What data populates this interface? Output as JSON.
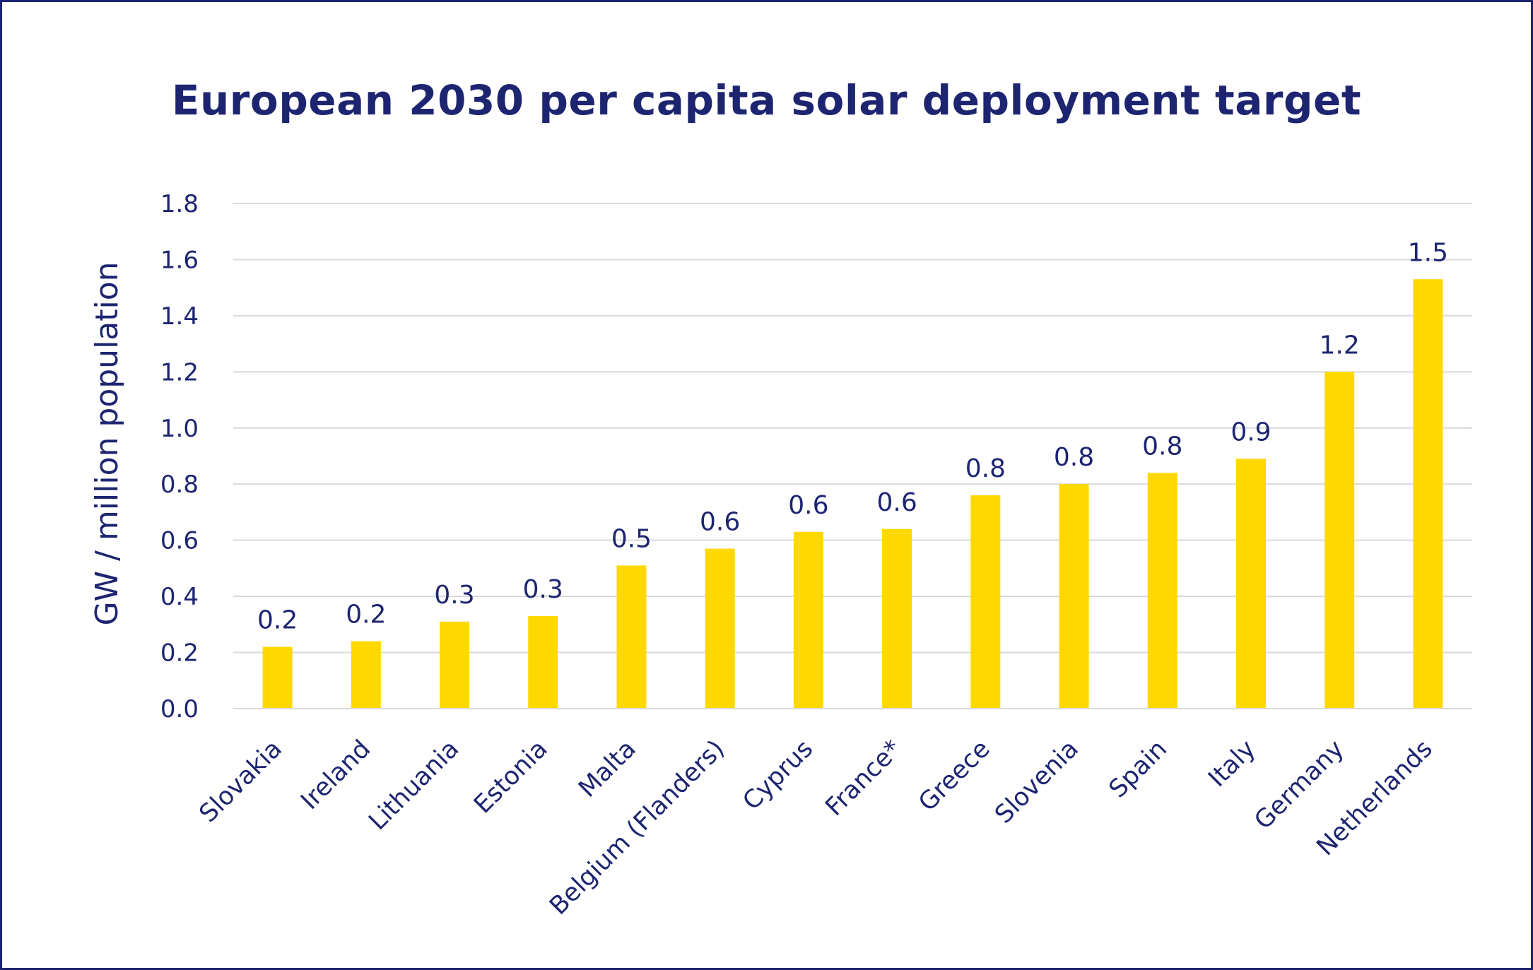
{
  "chart_data": {
    "type": "bar",
    "title": "European 2030 per capita solar deployment target",
    "xlabel": "",
    "ylabel": "GW / million population",
    "ylim": [
      0,
      1.8
    ],
    "yticks": [
      "0.0",
      "0.2",
      "0.4",
      "0.6",
      "0.8",
      "1.0",
      "1.2",
      "1.4",
      "1.6",
      "1.8"
    ],
    "grid": true,
    "legend": "none",
    "categories": [
      "Slovakia",
      "Ireland",
      "Lithuania",
      "Estonia",
      "Malta",
      "Belgium (Flanders)",
      "Cyprus",
      "France*",
      "Greece",
      "Slovenia",
      "Spain",
      "Italy",
      "Germany",
      "Netherlands"
    ],
    "values": [
      0.22,
      0.24,
      0.31,
      0.33,
      0.51,
      0.57,
      0.63,
      0.64,
      0.76,
      0.8,
      0.84,
      0.89,
      1.2,
      1.53
    ],
    "data_labels": [
      "0.2",
      "0.2",
      "0.3",
      "0.3",
      "0.5",
      "0.6",
      "0.6",
      "0.6",
      "0.8",
      "0.8",
      "0.8",
      "0.9",
      "1.2",
      "1.5"
    ],
    "colors": {
      "bar": "#ffd800",
      "text": "#1d2571",
      "grid": "#d9d9d9",
      "border": "#1d2571"
    }
  }
}
